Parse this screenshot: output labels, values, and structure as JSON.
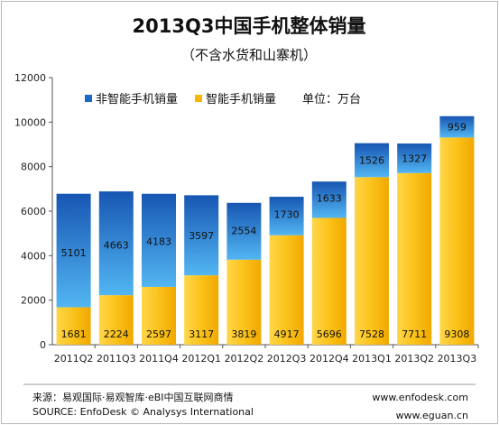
{
  "chart_data": {
    "type": "bar",
    "stacked": true,
    "title": "2013Q3中国手机整体销量",
    "subtitle": "（不含水货和山寨机）",
    "unit_label": "单位：万台",
    "categories": [
      "2011Q2",
      "2011Q3",
      "2011Q4",
      "2012Q1",
      "2012Q2",
      "2012Q3",
      "2012Q4",
      "2013Q1",
      "2013Q2",
      "2013Q3"
    ],
    "series": [
      {
        "name": "智能手机销量",
        "color": "#f5b800",
        "values": [
          1681,
          2224,
          2597,
          3117,
          3819,
          4917,
          5696,
          7528,
          7711,
          9308
        ]
      },
      {
        "name": "非智能手机销量",
        "color": "#1a6bc4",
        "values": [
          5101,
          4663,
          4183,
          3597,
          2554,
          1730,
          1633,
          1526,
          1327,
          959
        ]
      }
    ],
    "ylim": [
      0,
      12000
    ],
    "yticks": [
      "0",
      "2000",
      "4000",
      "6000",
      "8000",
      "10000",
      "12000"
    ],
    "legend": [
      {
        "label": "非智能手机销量",
        "color": "#1a6bc4"
      },
      {
        "label": "智能手机销量",
        "color": "#f5b800"
      }
    ]
  },
  "footer": {
    "source_cn": "来源：易观国际·易观智库·eBI中国互联网商情",
    "source_en": "SOURCE:  EnfoDesk © Analysys International",
    "site1": "www.enfodesk.com",
    "site2": "www.eguan.cn"
  }
}
